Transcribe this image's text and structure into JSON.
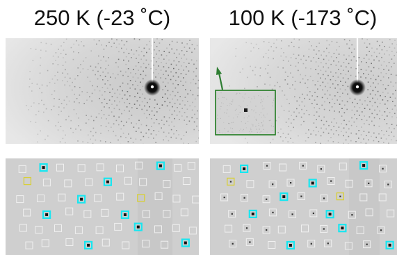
{
  "panels": {
    "left": {
      "title": "250 K (-23 ˚C)"
    },
    "right": {
      "title": "100 K (-173 ˚C)"
    }
  },
  "colors": {
    "background_gray": "#dcdcdc",
    "spot_gray": "#3a3a3a",
    "cyan_box": "#19e6f0",
    "yellow_box": "#d8cf39",
    "white_box": "#f2f2f2",
    "inset_border": "#1f7a1f",
    "arrow": "#2e7d32"
  },
  "icons": {
    "arrow": "up-arrow-icon"
  }
}
